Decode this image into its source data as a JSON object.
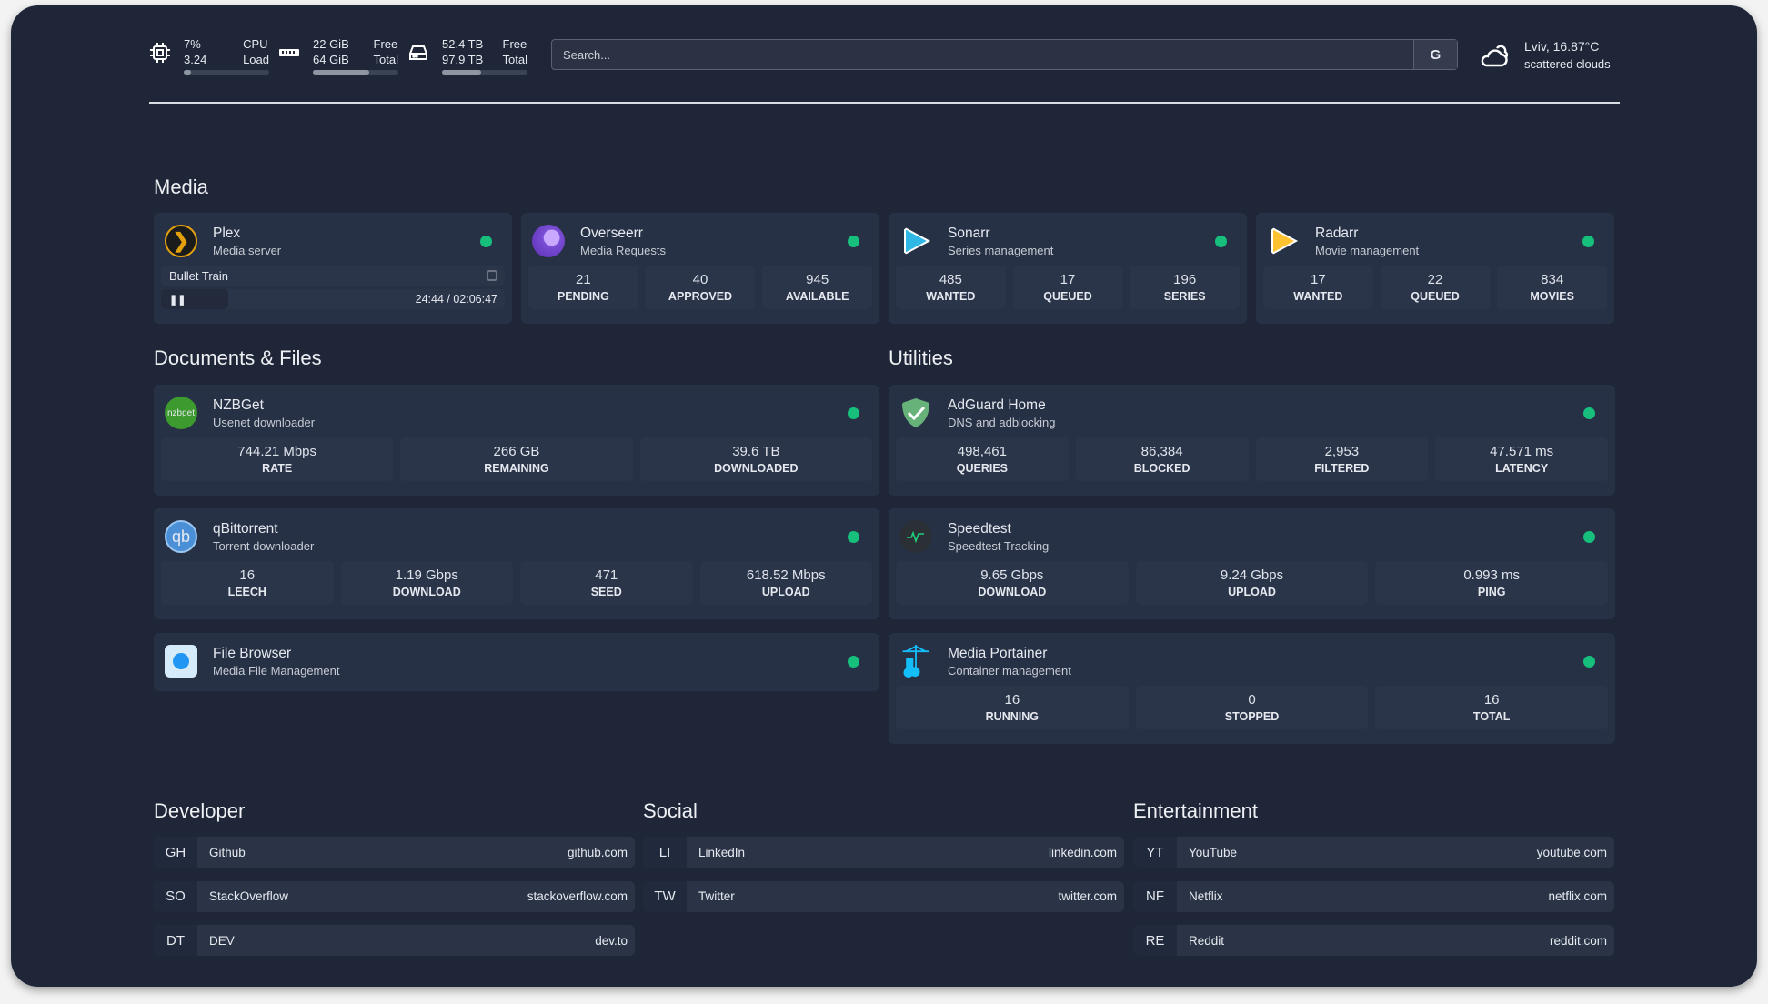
{
  "resources": {
    "cpu": {
      "icon": "cpu-icon",
      "value1": "7%",
      "value2": "3.24",
      "label1": "CPU",
      "label2": "Load",
      "usage_percent": 7
    },
    "memory": {
      "icon": "memory-icon",
      "value1": "22 GiB",
      "value2": "64 GiB",
      "label1": "Free",
      "label2": "Total",
      "usage_percent": 66
    },
    "disk": {
      "icon": "disk-icon",
      "value1": "52.4 TB",
      "value2": "97.9 TB",
      "label1": "Free",
      "label2": "Total",
      "usage_percent": 46
    }
  },
  "search": {
    "placeholder": "Search...",
    "provider_label": "G"
  },
  "weather": {
    "icon": "cloud-icon",
    "location_temp": "Lviv, 16.87°C",
    "condition": "scattered clouds"
  },
  "colors": {
    "background": "#1e2638",
    "card": "#273145",
    "status_ok": "#16c07c"
  },
  "sections": {
    "media": "Media",
    "docs": "Documents & Files",
    "utilities": "Utilities",
    "developer": "Developer",
    "social": "Social",
    "entertainment": "Entertainment"
  },
  "plex": {
    "name": "Plex",
    "desc": "Media server",
    "now_playing": "Bullet Train",
    "time": "24:44 / 02:06:47",
    "progress_percent": 19.5
  },
  "media": [
    {
      "name": "Overseerr",
      "desc": "Media Requests",
      "stats": [
        {
          "v": "21",
          "l": "PENDING"
        },
        {
          "v": "40",
          "l": "APPROVED"
        },
        {
          "v": "945",
          "l": "AVAILABLE"
        }
      ]
    },
    {
      "name": "Sonarr",
      "desc": "Series management",
      "stats": [
        {
          "v": "485",
          "l": "WANTED"
        },
        {
          "v": "17",
          "l": "QUEUED"
        },
        {
          "v": "196",
          "l": "SERIES"
        }
      ]
    },
    {
      "name": "Radarr",
      "desc": "Movie management",
      "stats": [
        {
          "v": "17",
          "l": "WANTED"
        },
        {
          "v": "22",
          "l": "QUEUED"
        },
        {
          "v": "834",
          "l": "MOVIES"
        }
      ]
    }
  ],
  "docs": [
    {
      "name": "NZBGet",
      "desc": "Usenet downloader",
      "icon_text": "nzbget",
      "stats": [
        {
          "v": "744.21 Mbps",
          "l": "RATE"
        },
        {
          "v": "266 GB",
          "l": "REMAINING"
        },
        {
          "v": "39.6 TB",
          "l": "DOWNLOADED"
        }
      ]
    },
    {
      "name": "qBittorrent",
      "desc": "Torrent downloader",
      "icon_text": "qb",
      "stats": [
        {
          "v": "16",
          "l": "LEECH"
        },
        {
          "v": "1.19 Gbps",
          "l": "DOWNLOAD"
        },
        {
          "v": "471",
          "l": "SEED"
        },
        {
          "v": "618.52 Mbps",
          "l": "UPLOAD"
        }
      ]
    },
    {
      "name": "File Browser",
      "desc": "Media File Management",
      "stats": []
    }
  ],
  "utilities": [
    {
      "name": "AdGuard Home",
      "desc": "DNS and adblocking",
      "stats": [
        {
          "v": "498,461",
          "l": "QUERIES"
        },
        {
          "v": "86,384",
          "l": "BLOCKED"
        },
        {
          "v": "2,953",
          "l": "FILTERED"
        },
        {
          "v": "47.571 ms",
          "l": "LATENCY"
        }
      ]
    },
    {
      "name": "Speedtest",
      "desc": "Speedtest Tracking",
      "stats": [
        {
          "v": "9.65 Gbps",
          "l": "DOWNLOAD"
        },
        {
          "v": "9.24 Gbps",
          "l": "UPLOAD"
        },
        {
          "v": "0.993 ms",
          "l": "PING"
        }
      ]
    },
    {
      "name": "Media Portainer",
      "desc": "Container management",
      "stats": [
        {
          "v": "16",
          "l": "RUNNING"
        },
        {
          "v": "0",
          "l": "STOPPED"
        },
        {
          "v": "16",
          "l": "TOTAL"
        }
      ]
    }
  ],
  "bookmarks": {
    "developer": [
      {
        "abbr": "GH",
        "name": "Github",
        "url": "github.com"
      },
      {
        "abbr": "SO",
        "name": "StackOverflow",
        "url": "stackoverflow.com"
      },
      {
        "abbr": "DT",
        "name": "DEV",
        "url": "dev.to"
      }
    ],
    "social": [
      {
        "abbr": "LI",
        "name": "LinkedIn",
        "url": "linkedin.com"
      },
      {
        "abbr": "TW",
        "name": "Twitter",
        "url": "twitter.com"
      }
    ],
    "entertainment": [
      {
        "abbr": "YT",
        "name": "YouTube",
        "url": "youtube.com"
      },
      {
        "abbr": "NF",
        "name": "Netflix",
        "url": "netflix.com"
      },
      {
        "abbr": "RE",
        "name": "Reddit",
        "url": "reddit.com"
      }
    ]
  }
}
